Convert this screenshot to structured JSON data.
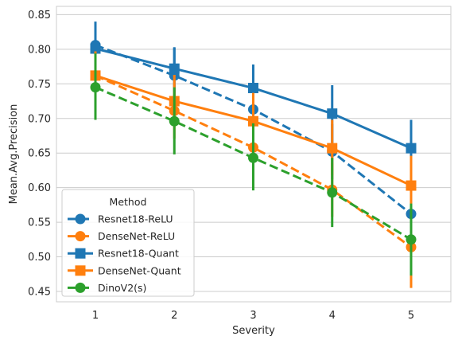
{
  "chart_data": {
    "type": "line",
    "xlabel": "Severity",
    "ylabel": "Mean.Avg.Precision",
    "categories": [
      "1",
      "2",
      "3",
      "4",
      "5"
    ],
    "ylim": [
      0.435,
      0.862
    ],
    "yticks": [
      "0.45",
      "0.50",
      "0.55",
      "0.60",
      "0.65",
      "0.70",
      "0.75",
      "0.80",
      "0.85"
    ],
    "grid": "horizontal",
    "legend": {
      "title": "Method",
      "placement": "lower-left",
      "entries": [
        "Resnet18-ReLU",
        "DenseNet-ReLU",
        "Resnet18-Quant",
        "DenseNet-Quant",
        "DinoV2(s)"
      ]
    },
    "series": [
      {
        "name": "Resnet18-ReLU",
        "color": "#1f77b4",
        "linestyle": "dashed",
        "marker": "circle",
        "values": [
          0.806,
          0.762,
          0.713,
          0.652,
          0.562
        ],
        "err_low": [
          0.772,
          0.722,
          0.674,
          0.612,
          0.522
        ],
        "err_high": [
          0.84,
          0.802,
          0.754,
          0.692,
          0.602
        ]
      },
      {
        "name": "DenseNet-ReLU",
        "color": "#ff7f0e",
        "linestyle": "dashed",
        "marker": "circle",
        "values": [
          0.762,
          0.711,
          0.658,
          0.597,
          0.514
        ],
        "err_low": [
          0.725,
          0.671,
          0.619,
          0.558,
          0.455
        ],
        "err_high": [
          0.799,
          0.751,
          0.697,
          0.636,
          0.573
        ]
      },
      {
        "name": "Resnet18-Quant",
        "color": "#1f77b4",
        "linestyle": "solid",
        "marker": "square",
        "values": [
          0.801,
          0.772,
          0.744,
          0.707,
          0.657
        ],
        "err_low": [
          0.765,
          0.738,
          0.709,
          0.665,
          0.617
        ],
        "err_high": [
          0.838,
          0.803,
          0.778,
          0.748,
          0.698
        ]
      },
      {
        "name": "DenseNet-Quant",
        "color": "#ff7f0e",
        "linestyle": "solid",
        "marker": "square",
        "values": [
          0.762,
          0.725,
          0.696,
          0.657,
          0.603
        ],
        "err_low": [
          0.728,
          0.688,
          0.657,
          0.618,
          0.562
        ],
        "err_high": [
          0.797,
          0.763,
          0.737,
          0.698,
          0.646
        ]
      },
      {
        "name": "DinoV2(s)",
        "color": "#2ca02c",
        "linestyle": "dashed",
        "marker": "circle",
        "values": [
          0.745,
          0.696,
          0.643,
          0.593,
          0.525
        ],
        "err_low": [
          0.698,
          0.648,
          0.596,
          0.543,
          0.473
        ],
        "err_high": [
          0.794,
          0.745,
          0.693,
          0.643,
          0.577
        ]
      }
    ]
  }
}
